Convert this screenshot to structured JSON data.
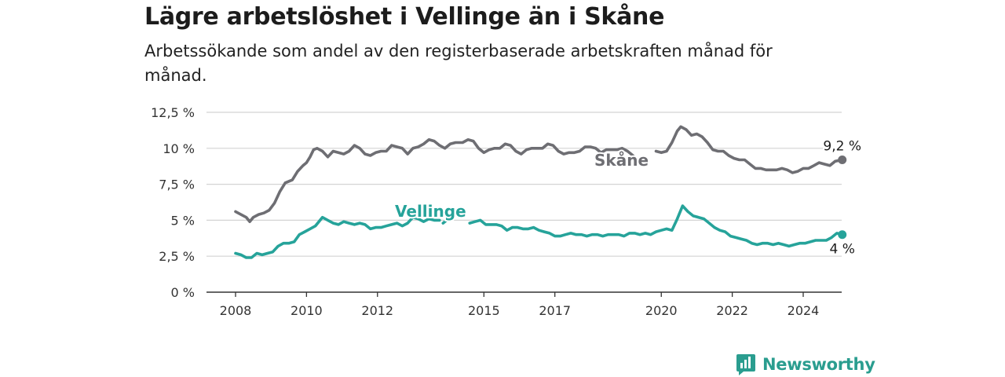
{
  "header": {
    "title": "Lägre arbetslöshet i Vellinge än i Skåne",
    "subtitle": "Arbetssökande som andel av den registerbaserade arbetskraften månad för månad."
  },
  "brand": {
    "name": "Newsworthy",
    "icon": "newsworthy-logo-icon",
    "color": "#2a9d8f"
  },
  "chart_data": {
    "type": "line",
    "title": "Lägre arbetslöshet i Vellinge än i Skåne",
    "subtitle": "Arbetssökande som andel av den registerbaserade arbetskraften månad för månad.",
    "xlabel": "",
    "ylabel": "",
    "xlim": [
      2008,
      2025.2
    ],
    "ylim": [
      0,
      12.5
    ],
    "y_ticks": [
      0,
      2.5,
      5,
      7.5,
      10,
      12.5
    ],
    "y_tick_labels": [
      "0 %",
      "2,5 %",
      "5 %",
      "7,5 %",
      "10 %",
      "12,5 %"
    ],
    "x_ticks": [
      2008,
      2010,
      2012,
      2015,
      2017,
      2020,
      2022,
      2024
    ],
    "x_tick_labels": [
      "2008",
      "2010",
      "2012",
      "2015",
      "2017",
      "2020",
      "2022",
      "2024"
    ],
    "grid": true,
    "legend": "inline labels",
    "series": [
      {
        "name": "Skåne",
        "color": "#6e6e73",
        "end_label": "9,2 %",
        "segments": [
          [
            [
              2008.0,
              5.6
            ],
            [
              2008.15,
              5.4
            ],
            [
              2008.3,
              5.2
            ],
            [
              2008.4,
              4.9
            ],
            [
              2008.5,
              5.2
            ],
            [
              2008.65,
              5.4
            ],
            [
              2008.8,
              5.5
            ],
            [
              2008.95,
              5.7
            ],
            [
              2009.1,
              6.2
            ],
            [
              2009.25,
              7.0
            ],
            [
              2009.4,
              7.6
            ],
            [
              2009.6,
              7.8
            ],
            [
              2009.75,
              8.4
            ],
            [
              2009.9,
              8.8
            ],
            [
              2010.0,
              9.0
            ],
            [
              2010.1,
              9.4
            ],
            [
              2010.2,
              9.9
            ],
            [
              2010.3,
              10.0
            ],
            [
              2010.45,
              9.8
            ],
            [
              2010.6,
              9.4
            ],
            [
              2010.75,
              9.8
            ],
            [
              2010.9,
              9.7
            ],
            [
              2011.05,
              9.6
            ],
            [
              2011.2,
              9.8
            ],
            [
              2011.35,
              10.2
            ],
            [
              2011.5,
              10.0
            ],
            [
              2011.65,
              9.6
            ],
            [
              2011.8,
              9.5
            ],
            [
              2011.95,
              9.7
            ],
            [
              2012.1,
              9.8
            ],
            [
              2012.25,
              9.8
            ],
            [
              2012.4,
              10.2
            ],
            [
              2012.55,
              10.1
            ],
            [
              2012.7,
              10.0
            ],
            [
              2012.85,
              9.6
            ],
            [
              2013.0,
              10.0
            ],
            [
              2013.15,
              10.1
            ],
            [
              2013.3,
              10.3
            ],
            [
              2013.45,
              10.6
            ],
            [
              2013.6,
              10.5
            ],
            [
              2013.75,
              10.2
            ],
            [
              2013.9,
              10.0
            ],
            [
              2014.05,
              10.3
            ],
            [
              2014.2,
              10.4
            ],
            [
              2014.4,
              10.4
            ],
            [
              2014.55,
              10.6
            ],
            [
              2014.7,
              10.5
            ],
            [
              2014.85,
              10.0
            ],
            [
              2015.0,
              9.7
            ],
            [
              2015.15,
              9.9
            ],
            [
              2015.3,
              10.0
            ],
            [
              2015.45,
              10.0
            ],
            [
              2015.6,
              10.3
            ],
            [
              2015.75,
              10.2
            ],
            [
              2015.9,
              9.8
            ],
            [
              2016.05,
              9.6
            ],
            [
              2016.2,
              9.9
            ],
            [
              2016.35,
              10.0
            ],
            [
              2016.5,
              10.0
            ],
            [
              2016.65,
              10.0
            ],
            [
              2016.8,
              10.3
            ],
            [
              2016.95,
              10.2
            ],
            [
              2017.1,
              9.8
            ],
            [
              2017.25,
              9.6
            ],
            [
              2017.4,
              9.7
            ],
            [
              2017.55,
              9.7
            ],
            [
              2017.7,
              9.8
            ],
            [
              2017.85,
              10.1
            ],
            [
              2018.0,
              10.1
            ],
            [
              2018.15,
              10.0
            ],
            [
              2018.3,
              9.7
            ],
            [
              2018.45,
              9.9
            ],
            [
              2018.6,
              9.9
            ],
            [
              2018.75,
              9.9
            ],
            [
              2018.9,
              10.0
            ],
            [
              2019.05,
              9.8
            ],
            [
              2019.2,
              9.5
            ],
            [
              2019.3,
              9.2
            ]
          ],
          [
            [
              2019.85,
              9.8
            ],
            [
              2020.0,
              9.7
            ],
            [
              2020.15,
              9.8
            ],
            [
              2020.3,
              10.4
            ],
            [
              2020.45,
              11.2
            ],
            [
              2020.55,
              11.5
            ],
            [
              2020.7,
              11.3
            ],
            [
              2020.85,
              10.9
            ],
            [
              2021.0,
              11.0
            ],
            [
              2021.15,
              10.8
            ],
            [
              2021.3,
              10.4
            ],
            [
              2021.45,
              9.9
            ],
            [
              2021.6,
              9.8
            ],
            [
              2021.75,
              9.8
            ],
            [
              2021.9,
              9.5
            ],
            [
              2022.05,
              9.3
            ],
            [
              2022.2,
              9.2
            ],
            [
              2022.35,
              9.2
            ],
            [
              2022.5,
              8.9
            ],
            [
              2022.65,
              8.6
            ],
            [
              2022.8,
              8.6
            ],
            [
              2022.95,
              8.5
            ],
            [
              2023.1,
              8.5
            ],
            [
              2023.25,
              8.5
            ],
            [
              2023.4,
              8.6
            ],
            [
              2023.55,
              8.5
            ],
            [
              2023.7,
              8.3
            ],
            [
              2023.85,
              8.4
            ],
            [
              2024.0,
              8.6
            ],
            [
              2024.15,
              8.6
            ],
            [
              2024.3,
              8.8
            ],
            [
              2024.45,
              9.0
            ],
            [
              2024.6,
              8.9
            ],
            [
              2024.75,
              8.8
            ],
            [
              2024.9,
              9.1
            ],
            [
              2025.1,
              9.2
            ]
          ]
        ]
      },
      {
        "name": "Vellinge",
        "color": "#26a39a",
        "end_label": "4 %",
        "segments": [
          [
            [
              2008.0,
              2.7
            ],
            [
              2008.15,
              2.6
            ],
            [
              2008.3,
              2.4
            ],
            [
              2008.45,
              2.4
            ],
            [
              2008.6,
              2.7
            ],
            [
              2008.75,
              2.6
            ],
            [
              2008.9,
              2.7
            ],
            [
              2009.05,
              2.8
            ],
            [
              2009.2,
              3.2
            ],
            [
              2009.35,
              3.4
            ],
            [
              2009.5,
              3.4
            ],
            [
              2009.65,
              3.5
            ],
            [
              2009.8,
              4.0
            ],
            [
              2009.95,
              4.2
            ],
            [
              2010.1,
              4.4
            ],
            [
              2010.25,
              4.6
            ],
            [
              2010.35,
              4.9
            ],
            [
              2010.45,
              5.2
            ],
            [
              2010.6,
              5.0
            ],
            [
              2010.75,
              4.8
            ],
            [
              2010.9,
              4.7
            ],
            [
              2011.05,
              4.9
            ],
            [
              2011.2,
              4.8
            ],
            [
              2011.35,
              4.7
            ],
            [
              2011.5,
              4.8
            ],
            [
              2011.65,
              4.7
            ],
            [
              2011.8,
              4.4
            ],
            [
              2011.95,
              4.5
            ],
            [
              2012.1,
              4.5
            ],
            [
              2012.25,
              4.6
            ],
            [
              2012.4,
              4.7
            ],
            [
              2012.55,
              4.8
            ],
            [
              2012.7,
              4.6
            ],
            [
              2012.85,
              4.8
            ],
            [
              2013.0,
              5.2
            ],
            [
              2013.15,
              5.1
            ],
            [
              2013.3,
              4.9
            ],
            [
              2013.45,
              5.1
            ],
            [
              2013.6,
              5.0
            ],
            [
              2013.75,
              5.0
            ]
          ],
          [
            [
              2013.85,
              4.8
            ],
            [
              2013.95,
              5.0
            ]
          ],
          [
            [
              2014.6,
              4.8
            ],
            [
              2014.75,
              4.9
            ],
            [
              2014.9,
              5.0
            ],
            [
              2015.05,
              4.7
            ],
            [
              2015.2,
              4.7
            ],
            [
              2015.35,
              4.7
            ],
            [
              2015.5,
              4.6
            ],
            [
              2015.65,
              4.3
            ],
            [
              2015.8,
              4.5
            ],
            [
              2015.95,
              4.5
            ],
            [
              2016.1,
              4.4
            ],
            [
              2016.25,
              4.4
            ],
            [
              2016.4,
              4.5
            ],
            [
              2016.55,
              4.3
            ],
            [
              2016.7,
              4.2
            ],
            [
              2016.85,
              4.1
            ],
            [
              2017.0,
              3.9
            ],
            [
              2017.15,
              3.9
            ],
            [
              2017.3,
              4.0
            ],
            [
              2017.45,
              4.1
            ],
            [
              2017.6,
              4.0
            ],
            [
              2017.75,
              4.0
            ],
            [
              2017.9,
              3.9
            ],
            [
              2018.05,
              4.0
            ],
            [
              2018.2,
              4.0
            ],
            [
              2018.35,
              3.9
            ],
            [
              2018.5,
              4.0
            ],
            [
              2018.65,
              4.0
            ],
            [
              2018.8,
              4.0
            ],
            [
              2018.95,
              3.9
            ],
            [
              2019.1,
              4.1
            ],
            [
              2019.25,
              4.1
            ],
            [
              2019.4,
              4.0
            ],
            [
              2019.55,
              4.1
            ],
            [
              2019.7,
              4.0
            ],
            [
              2019.85,
              4.2
            ],
            [
              2020.0,
              4.3
            ],
            [
              2020.15,
              4.4
            ],
            [
              2020.3,
              4.3
            ],
            [
              2020.45,
              5.1
            ],
            [
              2020.6,
              6.0
            ],
            [
              2020.75,
              5.6
            ],
            [
              2020.9,
              5.3
            ],
            [
              2021.05,
              5.2
            ],
            [
              2021.2,
              5.1
            ],
            [
              2021.35,
              4.8
            ],
            [
              2021.5,
              4.5
            ],
            [
              2021.65,
              4.3
            ],
            [
              2021.8,
              4.2
            ],
            [
              2021.95,
              3.9
            ],
            [
              2022.1,
              3.8
            ],
            [
              2022.25,
              3.7
            ],
            [
              2022.4,
              3.6
            ],
            [
              2022.55,
              3.4
            ],
            [
              2022.7,
              3.3
            ],
            [
              2022.85,
              3.4
            ],
            [
              2023.0,
              3.4
            ],
            [
              2023.15,
              3.3
            ],
            [
              2023.3,
              3.4
            ],
            [
              2023.45,
              3.3
            ],
            [
              2023.6,
              3.2
            ],
            [
              2023.75,
              3.3
            ],
            [
              2023.9,
              3.4
            ],
            [
              2024.05,
              3.4
            ],
            [
              2024.2,
              3.5
            ],
            [
              2024.35,
              3.6
            ],
            [
              2024.5,
              3.6
            ],
            [
              2024.65,
              3.6
            ],
            [
              2024.8,
              3.8
            ],
            [
              2024.95,
              4.1
            ],
            [
              2025.1,
              4.0
            ]
          ]
        ]
      }
    ]
  }
}
